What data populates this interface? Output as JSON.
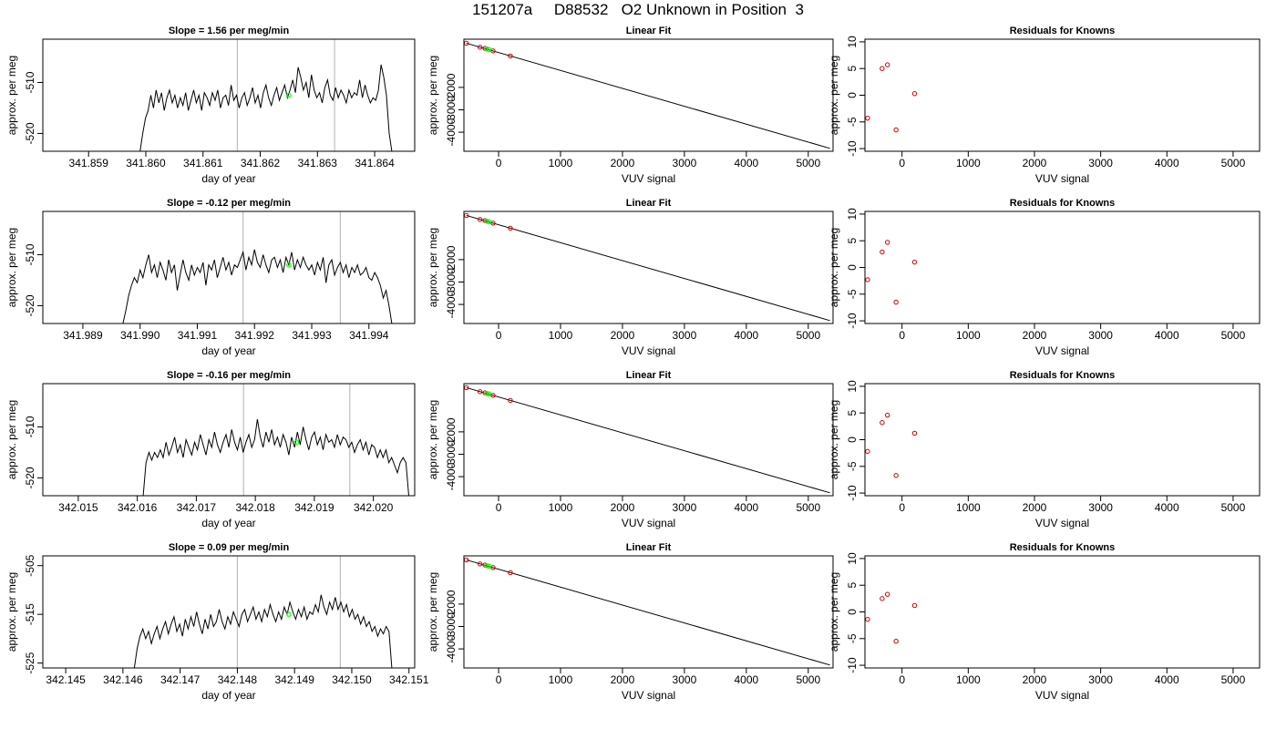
{
  "figure": {
    "title": "151207a     D88532   O2 Unknown in Position  3"
  },
  "colors": {
    "trace": "#000000",
    "vline": "#bdbdbd",
    "highlight": "#00ff00",
    "known_marker": "#cc0000",
    "axis": "#000000"
  },
  "chart_data": [
    {
      "type": "line",
      "row": 1,
      "panel": "time-series",
      "title": "Slope =  1.56  per meg/min",
      "xlabel": "day of year",
      "ylabel": "approx. per meg",
      "xlim": [
        341.8582,
        341.8647
      ],
      "ylim": [
        -523.5,
        -501.5
      ],
      "xticks": [
        341.859,
        341.86,
        341.861,
        341.862,
        341.863,
        341.864
      ],
      "xtick_labels": [
        "341.859",
        "341.860",
        "341.861",
        "341.862",
        "341.863",
        "341.864"
      ],
      "yticks": [
        -510,
        -520
      ],
      "ytick_labels": [
        "-510",
        "-520"
      ],
      "vlines": [
        341.8616,
        341.8633
      ],
      "trace_x_start": 341.8599,
      "trace_x_end": 341.8643,
      "trace_y": [
        -523.5,
        -520,
        -517,
        -515.5,
        -512.5,
        -515,
        -511.5,
        -514,
        -512,
        -515.5,
        -513,
        -511.5,
        -514,
        -512.5,
        -515,
        -513,
        -514.5,
        -512,
        -515.5,
        -513.5,
        -511.5,
        -514,
        -512.5,
        -515.5,
        -512,
        -513,
        -514.5,
        -512,
        -513.5,
        -511.5,
        -515,
        -513,
        -512.5,
        -514.5,
        -510.5,
        -513.5,
        -512.5,
        -515,
        -513,
        -512,
        -514.5,
        -513,
        -511,
        -514,
        -512.5,
        -515,
        -512,
        -510.5,
        -513,
        -514.5,
        -512.5,
        -511,
        -513.5,
        -512,
        -510.5,
        -513,
        -511.5,
        -509.5,
        -512,
        -507,
        -509,
        -511.5,
        -510,
        -513,
        -508.5,
        -511.5,
        -513,
        -512,
        -514,
        -511,
        -509.5,
        -512.5,
        -513.5,
        -511,
        -513,
        -511.5,
        -512.5,
        -514,
        -511.5,
        -513,
        -512,
        -512.5,
        -509.5,
        -513,
        -510.5,
        -512.5,
        -514,
        -513,
        -513.5,
        -511.5,
        -506.5,
        -509,
        -512.5,
        -520,
        -523.5
      ],
      "highlight_point": {
        "x": 341.8625,
        "y": -512.5
      }
    },
    {
      "type": "scatter",
      "row": 1,
      "panel": "linear-fit",
      "title": "Linear Fit",
      "xlabel": "VUV signal",
      "ylabel": "approx. per meg",
      "xlim": [
        -560,
        5400
      ],
      "ylim": [
        -4850,
        150
      ],
      "xticks": [
        0,
        1000,
        2000,
        3000,
        4000,
        5000
      ],
      "xtick_labels": [
        "0",
        "1000",
        "2000",
        "3000",
        "4000",
        "5000"
      ],
      "yticks": [
        -2000,
        -3000,
        -4000
      ],
      "ytick_labels": [
        "-2000",
        "-3000",
        "-4000"
      ],
      "fit_line": {
        "x": [
          -520,
          5350
        ],
        "y": [
          -30,
          -4720
        ]
      },
      "known_points": {
        "x": [
          -520,
          -300,
          -220,
          -90,
          190
        ],
        "y": [
          -30,
          -210,
          -260,
          -370,
          -600
        ]
      },
      "unknown_points": {
        "x": [
          -190,
          -155
        ],
        "y": [
          -290,
          -310
        ]
      }
    },
    {
      "type": "scatter",
      "row": 1,
      "panel": "residuals",
      "title": "Residuals for Knowns",
      "xlabel": "VUV signal",
      "ylabel": "approx. per meg",
      "xlim": [
        -560,
        5400
      ],
      "ylim": [
        -10.5,
        10.5
      ],
      "xticks": [
        0,
        1000,
        2000,
        3000,
        4000,
        5000
      ],
      "xtick_labels": [
        "0",
        "1000",
        "2000",
        "3000",
        "4000",
        "5000"
      ],
      "yticks": [
        10,
        5,
        0,
        -5,
        -10
      ],
      "ytick_labels": [
        "10",
        "5",
        "0",
        "-5",
        "-10"
      ],
      "points": {
        "x": [
          -520,
          -300,
          -220,
          -90,
          190
        ],
        "y": [
          -4.3,
          5.0,
          5.7,
          -6.5,
          0.3
        ]
      }
    },
    {
      "type": "line",
      "row": 2,
      "panel": "time-series",
      "title": "Slope =  -0.12  per meg/min",
      "xlabel": "day of year",
      "ylabel": "approx. per meg",
      "xlim": [
        341.9883,
        341.9948
      ],
      "ylim": [
        -523.5,
        -501.5
      ],
      "xticks": [
        341.989,
        341.99,
        341.991,
        341.992,
        341.993,
        341.994
      ],
      "xtick_labels": [
        "341.989",
        "341.990",
        "341.991",
        "341.992",
        "341.993",
        "341.994"
      ],
      "yticks": [
        -510,
        -520
      ],
      "ytick_labels": [
        "-510",
        "-520"
      ],
      "vlines": [
        341.9918,
        341.9935
      ],
      "trace_x_start": 341.9897,
      "trace_x_end": 341.9944,
      "trace_y": [
        -523.5,
        -521,
        -518,
        -516,
        -514.5,
        -515.5,
        -513,
        -514.5,
        -512,
        -510,
        -513.5,
        -512,
        -514.5,
        -511.5,
        -513,
        -515,
        -511,
        -513.5,
        -512,
        -517,
        -514,
        -511,
        -513.5,
        -515,
        -512,
        -514,
        -512.5,
        -513.5,
        -511.5,
        -516,
        -512,
        -513,
        -511,
        -514.5,
        -512.5,
        -510.5,
        -513,
        -511.5,
        -514,
        -512,
        -512.5,
        -511,
        -509.5,
        -513,
        -510.5,
        -512,
        -509,
        -511.5,
        -512.5,
        -510,
        -512,
        -513.5,
        -511,
        -510.5,
        -512.5,
        -511,
        -513.5,
        -510.5,
        -512,
        -509.5,
        -513,
        -511,
        -512.5,
        -510.5,
        -512,
        -513,
        -512,
        -514,
        -511.5,
        -513,
        -510.5,
        -515.5,
        -512,
        -511,
        -514,
        -512.5,
        -511.5,
        -513.5,
        -512,
        -514.5,
        -512.5,
        -513.5,
        -512,
        -514,
        -513.5,
        -512.5,
        -514.5,
        -515,
        -513.5,
        -514.5,
        -516,
        -518.5,
        -517,
        -520,
        -523.5
      ],
      "highlight_point": {
        "x": 341.9926,
        "y": -512
      }
    },
    {
      "type": "scatter",
      "row": 2,
      "panel": "linear-fit",
      "title": "Linear Fit",
      "xlabel": "VUV signal",
      "ylabel": "approx. per meg",
      "xlim": [
        -560,
        5400
      ],
      "ylim": [
        -4850,
        150
      ],
      "xticks": [
        0,
        1000,
        2000,
        3000,
        4000,
        5000
      ],
      "xtick_labels": [
        "0",
        "1000",
        "2000",
        "3000",
        "4000",
        "5000"
      ],
      "yticks": [
        -2000,
        -3000,
        -4000
      ],
      "ytick_labels": [
        "-2000",
        "-3000",
        "-4000"
      ],
      "fit_line": {
        "x": [
          -520,
          5350
        ],
        "y": [
          -30,
          -4720
        ]
      },
      "known_points": {
        "x": [
          -520,
          -300,
          -220,
          -90,
          190
        ],
        "y": [
          -30,
          -210,
          -260,
          -370,
          -600
        ]
      },
      "unknown_points": {
        "x": [
          -190,
          -155
        ],
        "y": [
          -290,
          -310
        ]
      }
    },
    {
      "type": "scatter",
      "row": 2,
      "panel": "residuals",
      "title": "Residuals for Knowns",
      "xlabel": "VUV signal",
      "ylabel": "approx. per meg",
      "xlim": [
        -560,
        5400
      ],
      "ylim": [
        -10.5,
        10.5
      ],
      "xticks": [
        0,
        1000,
        2000,
        3000,
        4000,
        5000
      ],
      "xtick_labels": [
        "0",
        "1000",
        "2000",
        "3000",
        "4000",
        "5000"
      ],
      "yticks": [
        10,
        5,
        0,
        -5,
        -10
      ],
      "ytick_labels": [
        "10",
        "5",
        "0",
        "-5",
        "-10"
      ],
      "points": {
        "x": [
          -520,
          -300,
          -220,
          -90,
          190
        ],
        "y": [
          -2.3,
          2.9,
          4.7,
          -6.5,
          1.0
        ]
      }
    },
    {
      "type": "line",
      "row": 3,
      "panel": "time-series",
      "title": "Slope =  -0.16  per meg/min",
      "xlabel": "day of year",
      "ylabel": "approx. per meg",
      "xlim": [
        342.0144,
        342.0207
      ],
      "ylim": [
        -523.5,
        -501.5
      ],
      "xticks": [
        342.015,
        342.016,
        342.017,
        342.018,
        342.019,
        342.02
      ],
      "xtick_labels": [
        "342.015",
        "342.016",
        "342.017",
        "342.018",
        "342.019",
        "342.020"
      ],
      "yticks": [
        -510,
        -520
      ],
      "ytick_labels": [
        "-510",
        "-520"
      ],
      "vlines": [
        342.0178,
        342.0196
      ],
      "trace_x_start": 342.0161,
      "trace_x_end": 342.0206,
      "trace_y": [
        -523.5,
        -517,
        -515,
        -516.5,
        -515,
        -516,
        -514.5,
        -516,
        -513,
        -515.5,
        -514,
        -512,
        -515,
        -513.5,
        -516,
        -512.5,
        -514,
        -515.5,
        -513,
        -514.5,
        -511.5,
        -513.5,
        -515.5,
        -512.5,
        -514,
        -511,
        -513.5,
        -515,
        -513,
        -511.5,
        -514,
        -510.5,
        -513,
        -514.5,
        -512,
        -515,
        -513,
        -511.5,
        -514,
        -512.5,
        -508.5,
        -512,
        -514,
        -511,
        -513,
        -510.5,
        -513.5,
        -512,
        -514,
        -511.5,
        -513,
        -515.5,
        -512,
        -514,
        -511,
        -513.5,
        -510,
        -512.5,
        -514.5,
        -512,
        -511,
        -513.5,
        -512,
        -514.5,
        -511.5,
        -513,
        -512.5,
        -514,
        -511.5,
        -513.5,
        -512,
        -512.5,
        -514,
        -513,
        -515,
        -513.5,
        -512.5,
        -514.5,
        -513,
        -515.5,
        -513.5,
        -514,
        -516,
        -514.5,
        -516,
        -514.5,
        -517,
        -516,
        -517.5,
        -519,
        -517,
        -516,
        -517,
        -523.5
      ],
      "highlight_point": {
        "x": 342.0187,
        "y": -513
      }
    },
    {
      "type": "scatter",
      "row": 3,
      "panel": "linear-fit",
      "title": "Linear Fit",
      "xlabel": "VUV signal",
      "ylabel": "approx. per meg",
      "xlim": [
        -560,
        5400
      ],
      "ylim": [
        -4850,
        150
      ],
      "xticks": [
        0,
        1000,
        2000,
        3000,
        4000,
        5000
      ],
      "xtick_labels": [
        "0",
        "1000",
        "2000",
        "3000",
        "4000",
        "5000"
      ],
      "yticks": [
        -2000,
        -3000,
        -4000
      ],
      "ytick_labels": [
        "-2000",
        "-3000",
        "-4000"
      ],
      "fit_line": {
        "x": [
          -520,
          5350
        ],
        "y": [
          -30,
          -4720
        ]
      },
      "known_points": {
        "x": [
          -520,
          -300,
          -220,
          -90,
          190
        ],
        "y": [
          -30,
          -210,
          -260,
          -370,
          -600
        ]
      },
      "unknown_points": {
        "x": [
          -190,
          -155
        ],
        "y": [
          -290,
          -310
        ]
      }
    },
    {
      "type": "scatter",
      "row": 3,
      "panel": "residuals",
      "title": "Residuals for Knowns",
      "xlabel": "VUV signal",
      "ylabel": "approx. per meg",
      "xlim": [
        -560,
        5400
      ],
      "ylim": [
        -10.5,
        10.5
      ],
      "xticks": [
        0,
        1000,
        2000,
        3000,
        4000,
        5000
      ],
      "xtick_labels": [
        "0",
        "1000",
        "2000",
        "3000",
        "4000",
        "5000"
      ],
      "yticks": [
        10,
        5,
        0,
        -5,
        -10
      ],
      "ytick_labels": [
        "10",
        "5",
        "0",
        "-5",
        "-10"
      ],
      "points": {
        "x": [
          -520,
          -300,
          -220,
          -90,
          190
        ],
        "y": [
          -2.2,
          3.2,
          4.6,
          -6.7,
          1.2
        ]
      }
    },
    {
      "type": "line",
      "row": 4,
      "panel": "time-series",
      "title": "Slope =  0.09  per meg/min",
      "xlabel": "day of year",
      "ylabel": "approx. per meg",
      "xlim": [
        342.1446,
        342.1511
      ],
      "ylim": [
        -526,
        -503
      ],
      "xticks": [
        342.145,
        342.146,
        342.147,
        342.148,
        342.149,
        342.15,
        342.151
      ],
      "xtick_labels": [
        "342.145",
        "342.146",
        "342.147",
        "342.148",
        "342.149",
        "342.150",
        "342.151"
      ],
      "yticks": [
        -505,
        -515,
        -525
      ],
      "ytick_labels": [
        "-505",
        "-515",
        "-525"
      ],
      "vlines": [
        342.148,
        342.1498
      ],
      "trace_x_start": 342.1462,
      "trace_x_end": 342.1507,
      "trace_y": [
        -526,
        -522,
        -519.5,
        -518,
        -520,
        -518.5,
        -521,
        -519,
        -517.5,
        -520,
        -518,
        -516.5,
        -519,
        -517,
        -515.5,
        -518.5,
        -517,
        -519.5,
        -516,
        -518,
        -515.5,
        -517.5,
        -514.5,
        -517,
        -519,
        -516,
        -518,
        -515,
        -517.5,
        -516.5,
        -514,
        -516.5,
        -518,
        -515.5,
        -517,
        -514.5,
        -516,
        -517.5,
        -515,
        -514,
        -516.5,
        -515,
        -513.5,
        -516,
        -514.5,
        -516.5,
        -514,
        -515.5,
        -513,
        -515,
        -516.5,
        -514.5,
        -516,
        -513.5,
        -515,
        -512.5,
        -514.5,
        -516,
        -514,
        -515.5,
        -513.5,
        -516,
        -514.5,
        -515,
        -513,
        -514.5,
        -511,
        -513.5,
        -515,
        -512.5,
        -514,
        -511.5,
        -514,
        -512.5,
        -514.5,
        -513,
        -515.5,
        -514,
        -516,
        -515,
        -517,
        -515.5,
        -517.5,
        -516.5,
        -518.5,
        -517.5,
        -519.5,
        -518,
        -519,
        -517.5,
        -518.5,
        -526
      ],
      "highlight_point": {
        "x": 342.1489,
        "y": -515
      }
    },
    {
      "type": "scatter",
      "row": 4,
      "panel": "linear-fit",
      "title": "Linear Fit",
      "xlabel": "VUV signal",
      "ylabel": "approx. per meg",
      "xlim": [
        -560,
        5400
      ],
      "ylim": [
        -4850,
        150
      ],
      "xticks": [
        0,
        1000,
        2000,
        3000,
        4000,
        5000
      ],
      "xtick_labels": [
        "0",
        "1000",
        "2000",
        "3000",
        "4000",
        "5000"
      ],
      "yticks": [
        -2000,
        -3000,
        -4000
      ],
      "ytick_labels": [
        "-2000",
        "-3000",
        "-4000"
      ],
      "fit_line": {
        "x": [
          -520,
          5350
        ],
        "y": [
          -30,
          -4720
        ]
      },
      "known_points": {
        "x": [
          -520,
          -300,
          -220,
          -90,
          190
        ],
        "y": [
          -30,
          -210,
          -260,
          -370,
          -600
        ]
      },
      "unknown_points": {
        "x": [
          -190,
          -155
        ],
        "y": [
          -290,
          -310
        ]
      }
    },
    {
      "type": "scatter",
      "row": 4,
      "panel": "residuals",
      "title": "Residuals for Knowns",
      "xlabel": "VUV signal",
      "ylabel": "approx. per meg",
      "xlim": [
        -560,
        5400
      ],
      "ylim": [
        -10.5,
        10.5
      ],
      "xticks": [
        0,
        1000,
        2000,
        3000,
        4000,
        5000
      ],
      "xtick_labels": [
        "0",
        "1000",
        "2000",
        "3000",
        "4000",
        "5000"
      ],
      "yticks": [
        10,
        5,
        0,
        -5,
        -10
      ],
      "ytick_labels": [
        "10",
        "5",
        "0",
        "-5",
        "-10"
      ],
      "points": {
        "x": [
          -520,
          -300,
          -220,
          -90,
          190
        ],
        "y": [
          -1.4,
          2.5,
          3.3,
          -5.5,
          1.2
        ]
      }
    }
  ]
}
